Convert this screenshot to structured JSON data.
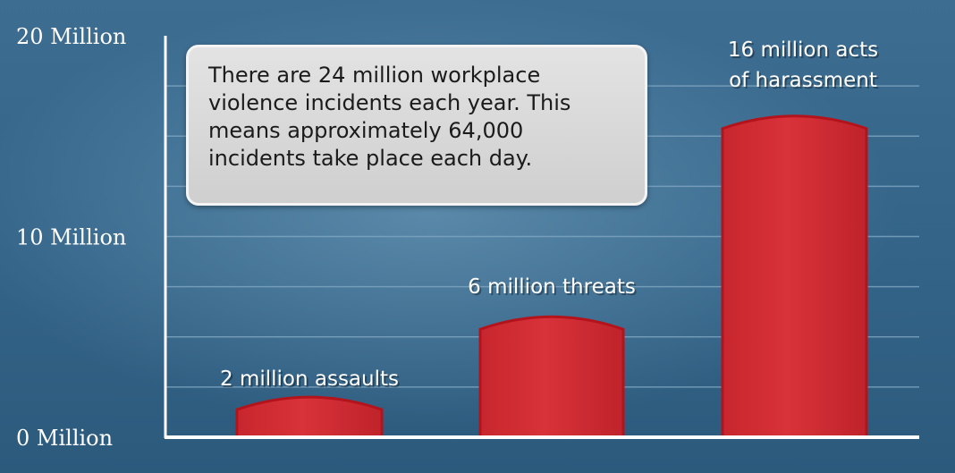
{
  "callout": {
    "lines": [
      "There are 24 million workplace",
      "violence incidents each year. This",
      "means approximately 64,000",
      "incidents take place each day."
    ]
  },
  "colors": {
    "bar_fill": "#d8323a",
    "bar_stroke": "#b3141c",
    "axis": "#ffffff",
    "gridline": "#7fa6c2"
  },
  "chart_data": {
    "type": "bar",
    "title": "",
    "xlabel": "",
    "ylabel": "",
    "categories": [
      "assaults",
      "threats",
      "acts of harassment"
    ],
    "values": [
      2,
      6,
      16
    ],
    "units": "Million",
    "ylim": [
      0,
      20
    ],
    "y_ticks": [
      {
        "value": 0,
        "label": "0 Million"
      },
      {
        "value": 10,
        "label": "10 Million"
      },
      {
        "value": 20,
        "label": "20 Million"
      }
    ],
    "gridlines": [
      2.5,
      5,
      7.5,
      10,
      12.5,
      15,
      17.5
    ],
    "grid": true,
    "bar_labels": [
      [
        "2 million assaults"
      ],
      [
        "6 million threats"
      ],
      [
        "16 million acts",
        "of harassment"
      ]
    ]
  }
}
